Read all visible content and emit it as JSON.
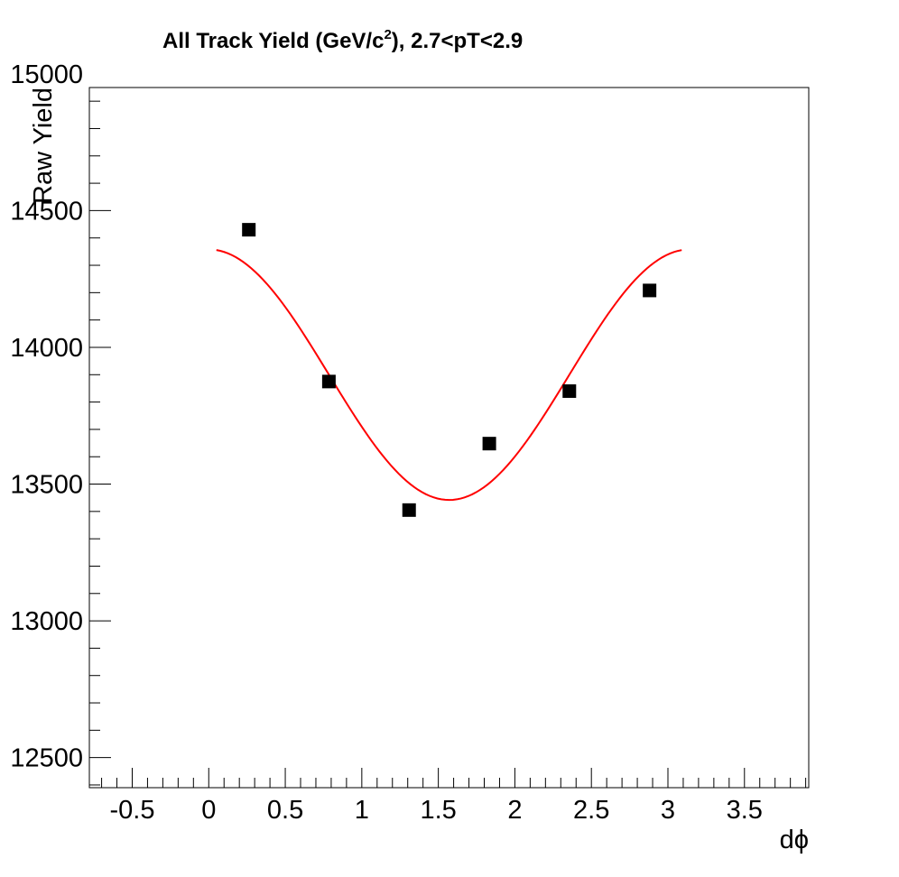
{
  "chart_data": {
    "type": "scatter",
    "title": {
      "main": "All Track Yield (GeV/c",
      "sup": "2",
      "rest": "), 2.7<pT<2.9"
    },
    "xlabel": "dϕ",
    "ylabel": "Raw Yield",
    "xlim": [
      -0.78,
      3.92
    ],
    "ylim": [
      12390,
      14950
    ],
    "x_ticks": [
      -0.5,
      0,
      0.5,
      1,
      1.5,
      2,
      2.5,
      3,
      3.5
    ],
    "x_tick_labels": [
      "-0.5",
      "0",
      "0.5",
      "1",
      "1.5",
      "2",
      "2.5",
      "3",
      "3.5"
    ],
    "y_ticks": [
      12500,
      13000,
      13500,
      14000,
      14500,
      15000
    ],
    "y_tick_labels": [
      "12500",
      "13000",
      "13500",
      "14000",
      "14500",
      "15000"
    ],
    "series": [
      {
        "marker": "square",
        "color": "#000000",
        "x": [
          0.262,
          0.785,
          1.309,
          1.833,
          2.356,
          2.88
        ],
        "y": [
          14430,
          13875,
          13405,
          13648,
          13840,
          14208
        ]
      }
    ],
    "fit": {
      "color": "#ff0000",
      "form": "A + B*cos(2x)",
      "A": 13900,
      "B": 458,
      "x_range": [
        0.05,
        3.09
      ]
    },
    "grid": false,
    "legend": "none"
  }
}
